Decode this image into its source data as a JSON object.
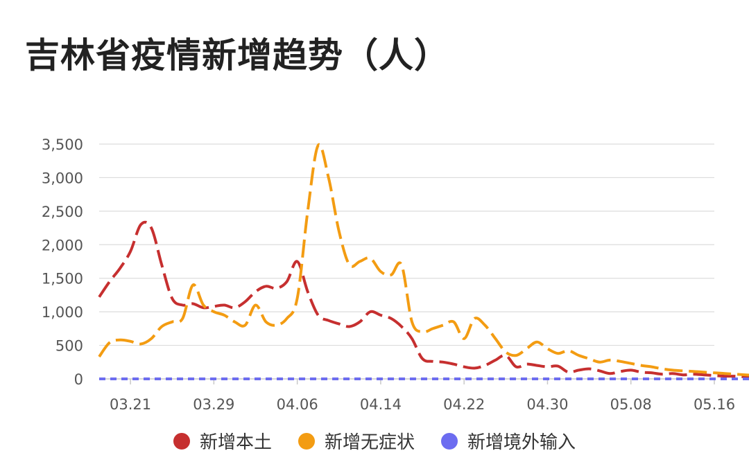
{
  "title": "吉林省疫情新增趋势（人）",
  "chart_data": {
    "type": "line",
    "title": "吉林省疫情新增趋势（人）",
    "xlabel": "",
    "ylabel": "",
    "x_ticks": [
      "03.21",
      "03.29",
      "04.06",
      "04.14",
      "04.22",
      "04.30",
      "05.08",
      "05.16"
    ],
    "y_ticks": [
      "0",
      "500",
      "1,000",
      "1,500",
      "2,000",
      "2,500",
      "3,000",
      "3,500"
    ],
    "ylim": [
      0,
      3500
    ],
    "x_start": "2022-03-18",
    "x_end": "2022-05-16",
    "grid": true,
    "legend_position": "bottom",
    "series": [
      {
        "name": "新增本土",
        "color": "#c62f2f",
        "values": [
          1220,
          1450,
          1650,
          1900,
          2300,
          2250,
          1700,
          1200,
          1100,
          1120,
          1060,
          1080,
          1100,
          1060,
          1150,
          1300,
          1380,
          1350,
          1450,
          1750,
          1300,
          950,
          870,
          820,
          780,
          850,
          1000,
          950,
          900,
          780,
          600,
          300,
          260,
          250,
          220,
          180,
          160,
          200,
          280,
          350,
          180,
          220,
          200,
          180,
          190,
          100,
          130,
          150,
          120,
          80,
          110,
          130,
          100,
          90,
          70,
          80,
          60,
          70,
          60,
          50,
          40,
          40,
          30,
          30,
          25,
          20,
          20,
          20,
          15,
          15,
          10,
          10,
          8,
          8,
          8,
          5,
          5,
          5,
          3,
          3,
          3,
          2,
          2,
          2,
          1,
          1,
          1,
          1,
          1,
          1,
          0
        ]
      },
      {
        "name": "新增无症状",
        "color": "#f39c12",
        "values": [
          330,
          540,
          580,
          560,
          520,
          600,
          780,
          850,
          900,
          1400,
          1100,
          1000,
          950,
          850,
          800,
          1100,
          850,
          800,
          900,
          1200,
          2500,
          3480,
          3000,
          2200,
          1700,
          1750,
          1800,
          1600,
          1550,
          1700,
          850,
          700,
          750,
          800,
          850,
          600,
          900,
          800,
          600,
          400,
          350,
          450,
          550,
          450,
          380,
          420,
          350,
          300,
          250,
          280,
          260,
          230,
          200,
          180,
          150,
          130,
          120,
          110,
          100,
          90,
          80,
          70,
          60,
          50,
          45,
          40,
          35,
          40,
          35,
          30,
          30,
          25,
          25,
          20,
          20,
          15,
          15,
          15,
          12,
          10,
          10,
          8,
          8,
          6,
          5,
          5,
          4,
          3,
          2,
          2,
          1
        ]
      },
      {
        "name": "新增境外输入",
        "color": "#6c6cf0",
        "values": [
          0,
          0,
          0,
          0,
          0,
          0,
          0,
          0,
          0,
          0,
          0,
          0,
          0,
          0,
          0,
          0,
          0,
          0,
          0,
          0,
          0,
          0,
          0,
          0,
          0,
          0,
          0,
          0,
          0,
          0,
          0,
          0,
          0,
          0,
          0,
          0,
          0,
          0,
          0,
          0,
          0,
          0,
          0,
          0,
          0,
          0,
          0,
          0,
          0,
          0,
          0,
          0,
          0,
          0,
          0,
          0,
          0,
          0,
          0,
          0,
          0,
          0,
          0,
          0,
          0,
          0,
          0,
          0,
          0,
          0,
          0,
          0,
          0,
          0,
          0,
          0,
          0,
          0,
          0,
          0,
          0,
          0,
          0,
          0,
          0,
          0,
          0,
          0,
          0,
          0,
          0
        ]
      }
    ]
  }
}
